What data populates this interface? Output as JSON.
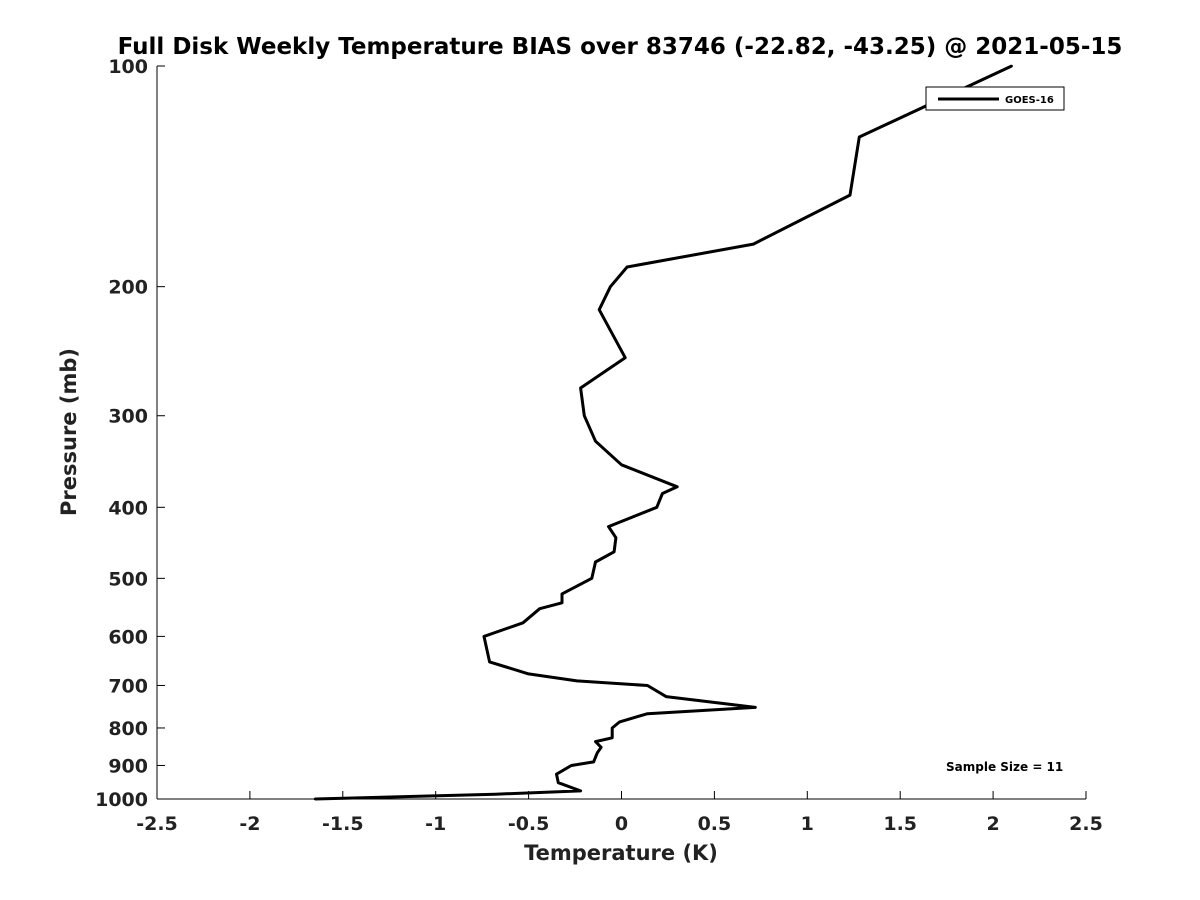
{
  "chart_data": {
    "type": "line",
    "title": "Full Disk Weekly Temperature BIAS over 83746 (-22.82, -43.25) @ 2021-05-15",
    "xlabel": "Temperature (K)",
    "ylabel": "Pressure (mb)",
    "xlim": [
      -2.5,
      2.5
    ],
    "ylim": [
      100,
      1000
    ],
    "y_scale": "log",
    "y_inverted": true,
    "x_ticks": [
      -2.5,
      -2,
      -1.5,
      -1,
      -0.5,
      0,
      0.5,
      1,
      1.5,
      2,
      2.5
    ],
    "x_tick_labels": [
      "-2.5",
      "-2",
      "-1.5",
      "-1",
      "-0.5",
      "0",
      "0.5",
      "1",
      "1.5",
      "2",
      "2.5"
    ],
    "y_ticks": [
      100,
      200,
      300,
      400,
      500,
      600,
      700,
      800,
      900,
      1000
    ],
    "y_tick_labels": [
      "100",
      "200",
      "300",
      "400",
      "500",
      "600",
      "700",
      "800",
      "900",
      "1000"
    ],
    "grid": false,
    "legend": {
      "position": "top-right",
      "entries": [
        "GOES-16"
      ]
    },
    "annotation": "Sample Size = 11",
    "series": [
      {
        "name": "GOES-16",
        "color": "#000000",
        "points": [
          [
            2.1,
            100
          ],
          [
            1.28,
            125
          ],
          [
            1.23,
            150
          ],
          [
            0.71,
            175
          ],
          [
            0.03,
            188
          ],
          [
            -0.06,
            200
          ],
          [
            -0.12,
            215
          ],
          [
            0.02,
            250
          ],
          [
            -0.22,
            275
          ],
          [
            -0.2,
            300
          ],
          [
            -0.14,
            325
          ],
          [
            0.0,
            350
          ],
          [
            0.3,
            375
          ],
          [
            0.22,
            383
          ],
          [
            0.19,
            400
          ],
          [
            -0.07,
            425
          ],
          [
            -0.03,
            440
          ],
          [
            -0.04,
            460
          ],
          [
            -0.14,
            475
          ],
          [
            -0.16,
            500
          ],
          [
            -0.32,
            525
          ],
          [
            -0.32,
            540
          ],
          [
            -0.44,
            550
          ],
          [
            -0.53,
            575
          ],
          [
            -0.74,
            600
          ],
          [
            -0.71,
            650
          ],
          [
            -0.5,
            675
          ],
          [
            -0.24,
            690
          ],
          [
            0.14,
            700
          ],
          [
            0.24,
            725
          ],
          [
            0.72,
            750
          ],
          [
            0.14,
            765
          ],
          [
            -0.01,
            785
          ],
          [
            -0.05,
            800
          ],
          [
            -0.05,
            825
          ],
          [
            -0.14,
            835
          ],
          [
            -0.11,
            850
          ],
          [
            -0.13,
            865
          ],
          [
            -0.15,
            890
          ],
          [
            -0.27,
            900
          ],
          [
            -0.35,
            925
          ],
          [
            -0.34,
            950
          ],
          [
            -0.22,
            975
          ],
          [
            -0.68,
            985
          ],
          [
            -1.65,
            1000
          ]
        ]
      }
    ]
  }
}
